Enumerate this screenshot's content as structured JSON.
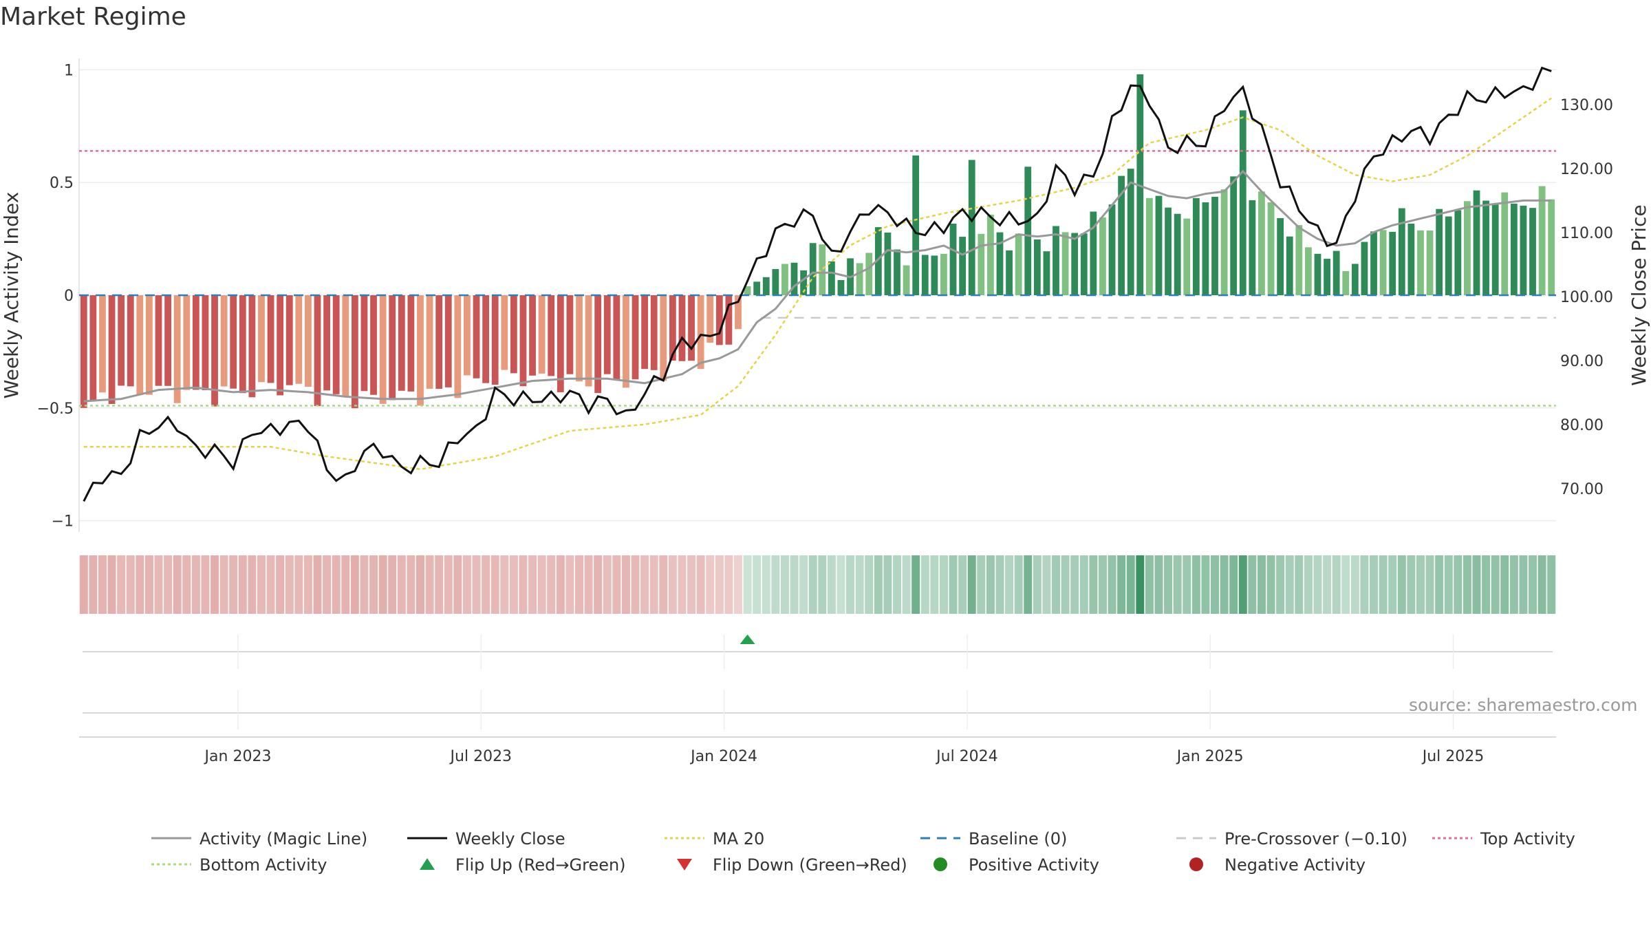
{
  "page": {
    "title": "Market Regime",
    "source": "source: sharemaestro.com"
  },
  "colors": {
    "red_dark": "#c95555",
    "red_light": "#e89a7c",
    "green_dark": "#2e8b57",
    "green_light": "#80c080",
    "close_line": "#111111",
    "magic_line": "#999999",
    "ma_line": "#e6d34a",
    "baseline": "#2c7fb8",
    "pre_crossover": "#cccccc",
    "top_activity": "#e07090",
    "bottom_activity": "#a8d880",
    "flip_up": "#22a050",
    "flip_down": "#d63030",
    "positive": "#228b22",
    "negative": "#b22222"
  },
  "chart_data": {
    "type": "bar",
    "title": "Market Regime",
    "ylabel": "Weekly Activity Index",
    "y2label": "Weekly Close Price",
    "ylim": [
      -1.05,
      1.05
    ],
    "y2lim": [
      63.2,
      137.2
    ],
    "y_ticks": [
      {
        "v": 1,
        "label": "1"
      },
      {
        "v": 0.5,
        "label": "0.5"
      },
      {
        "v": 0,
        "label": "0"
      },
      {
        "v": -0.5,
        "label": "−0.5"
      },
      {
        "v": -1,
        "label": "−1"
      }
    ],
    "y2_ticks": [
      70,
      80,
      90,
      100,
      110,
      120,
      130
    ],
    "x_ticks": [
      {
        "label": "Jan 2023",
        "week": 17
      },
      {
        "label": "Jul 2023",
        "week": 43
      },
      {
        "label": "Jan 2024",
        "week": 69
      },
      {
        "label": "Jul 2024",
        "week": 95
      },
      {
        "label": "Jan 2025",
        "week": 121
      },
      {
        "label": "Jul 2025",
        "week": 147
      }
    ],
    "weeks": 158,
    "flip_up_week": 71,
    "reference_lines": {
      "baseline": 0,
      "pre_crossover": -0.1,
      "top_activity": 0.64,
      "bottom_activity": -0.49
    },
    "activity_keypoints": [
      [
        0,
        -0.52
      ],
      [
        2,
        -0.44
      ],
      [
        6,
        -0.42
      ],
      [
        10,
        -0.43
      ],
      [
        14,
        -0.44
      ],
      [
        18,
        -0.42
      ],
      [
        22,
        -0.4
      ],
      [
        26,
        -0.45
      ],
      [
        30,
        -0.46
      ],
      [
        34,
        -0.45
      ],
      [
        38,
        -0.43
      ],
      [
        42,
        -0.38
      ],
      [
        46,
        -0.36
      ],
      [
        50,
        -0.37
      ],
      [
        54,
        -0.4
      ],
      [
        58,
        -0.38
      ],
      [
        62,
        -0.33
      ],
      [
        66,
        -0.28
      ],
      [
        69,
        -0.2
      ],
      [
        70,
        -0.13
      ],
      [
        71,
        0.04
      ],
      [
        73,
        0.08
      ],
      [
        75,
        0.12
      ],
      [
        77,
        0.16
      ],
      [
        79,
        0.22
      ],
      [
        81,
        0.1
      ],
      [
        83,
        0.14
      ],
      [
        85,
        0.3
      ],
      [
        87,
        0.2
      ],
      [
        89,
        0.16
      ],
      [
        91,
        0.18
      ],
      [
        93,
        0.27
      ],
      [
        95,
        0.25
      ],
      [
        97,
        0.32
      ],
      [
        99,
        0.24
      ],
      [
        101,
        0.26
      ],
      [
        103,
        0.24
      ],
      [
        105,
        0.28
      ],
      [
        107,
        0.3
      ],
      [
        109,
        0.35
      ],
      [
        111,
        0.52
      ],
      [
        113,
        0.55
      ],
      [
        115,
        0.4
      ],
      [
        117,
        0.37
      ],
      [
        119,
        0.38
      ],
      [
        121,
        0.46
      ],
      [
        123,
        0.49
      ],
      [
        125,
        0.46
      ],
      [
        127,
        0.4
      ],
      [
        129,
        0.3
      ],
      [
        131,
        0.22
      ],
      [
        133,
        0.18
      ],
      [
        135,
        0.12
      ],
      [
        137,
        0.22
      ],
      [
        139,
        0.3
      ],
      [
        141,
        0.34
      ],
      [
        143,
        0.3
      ],
      [
        145,
        0.33
      ],
      [
        147,
        0.4
      ],
      [
        149,
        0.43
      ],
      [
        151,
        0.44
      ],
      [
        153,
        0.4
      ],
      [
        155,
        0.42
      ],
      [
        157,
        0.44
      ]
    ],
    "activity_spikes": [
      [
        89,
        0.62
      ],
      [
        95,
        0.6
      ],
      [
        101,
        0.57
      ],
      [
        113,
        0.98
      ],
      [
        124,
        0.82
      ]
    ],
    "close_keypoints": [
      [
        0,
        68
      ],
      [
        2,
        72
      ],
      [
        4,
        72
      ],
      [
        6,
        78
      ],
      [
        8,
        80
      ],
      [
        10,
        80
      ],
      [
        12,
        76
      ],
      [
        14,
        76
      ],
      [
        16,
        74
      ],
      [
        18,
        79
      ],
      [
        20,
        79
      ],
      [
        22,
        80
      ],
      [
        24,
        80
      ],
      [
        26,
        73
      ],
      [
        28,
        71
      ],
      [
        30,
        76
      ],
      [
        32,
        76
      ],
      [
        34,
        73
      ],
      [
        36,
        74
      ],
      [
        38,
        74
      ],
      [
        40,
        78
      ],
      [
        42,
        79
      ],
      [
        44,
        85
      ],
      [
        46,
        84
      ],
      [
        48,
        84
      ],
      [
        50,
        84
      ],
      [
        52,
        85
      ],
      [
        54,
        83
      ],
      [
        56,
        84
      ],
      [
        58,
        81
      ],
      [
        60,
        85
      ],
      [
        62,
        88
      ],
      [
        64,
        93
      ],
      [
        66,
        93
      ],
      [
        68,
        95
      ],
      [
        70,
        100
      ],
      [
        72,
        105
      ],
      [
        74,
        110
      ],
      [
        76,
        112
      ],
      [
        78,
        113
      ],
      [
        80,
        106
      ],
      [
        82,
        110
      ],
      [
        84,
        114
      ],
      [
        86,
        113
      ],
      [
        88,
        111
      ],
      [
        90,
        110
      ],
      [
        92,
        111
      ],
      [
        94,
        113
      ],
      [
        96,
        113
      ],
      [
        98,
        112
      ],
      [
        100,
        112
      ],
      [
        102,
        112
      ],
      [
        104,
        120
      ],
      [
        106,
        117
      ],
      [
        108,
        119
      ],
      [
        110,
        127
      ],
      [
        112,
        133
      ],
      [
        114,
        131
      ],
      [
        116,
        123
      ],
      [
        118,
        124
      ],
      [
        120,
        124
      ],
      [
        122,
        130
      ],
      [
        124,
        132
      ],
      [
        126,
        126
      ],
      [
        128,
        118
      ],
      [
        130,
        114
      ],
      [
        132,
        110
      ],
      [
        134,
        108
      ],
      [
        136,
        116
      ],
      [
        138,
        122
      ],
      [
        140,
        124
      ],
      [
        142,
        126
      ],
      [
        144,
        125
      ],
      [
        146,
        128
      ],
      [
        148,
        131
      ],
      [
        150,
        131
      ],
      [
        152,
        132
      ],
      [
        154,
        132
      ],
      [
        156,
        135
      ],
      [
        157,
        135
      ]
    ],
    "ma_keypoints": [
      [
        0,
        76.5
      ],
      [
        20,
        76.5
      ],
      [
        26,
        75
      ],
      [
        36,
        73
      ],
      [
        44,
        75
      ],
      [
        52,
        79
      ],
      [
        60,
        80
      ],
      [
        66,
        81.5
      ],
      [
        70,
        86
      ],
      [
        74,
        94
      ],
      [
        78,
        103
      ],
      [
        82,
        108
      ],
      [
        86,
        111
      ],
      [
        92,
        113
      ],
      [
        100,
        115
      ],
      [
        106,
        117
      ],
      [
        110,
        119
      ],
      [
        114,
        124
      ],
      [
        120,
        126
      ],
      [
        124,
        128
      ],
      [
        128,
        126
      ],
      [
        132,
        122
      ],
      [
        136,
        119
      ],
      [
        140,
        118
      ],
      [
        144,
        119
      ],
      [
        148,
        122
      ],
      [
        152,
        126
      ],
      [
        157,
        131
      ]
    ],
    "magic_keypoints": [
      [
        0,
        -0.47
      ],
      [
        4,
        -0.46
      ],
      [
        8,
        -0.42
      ],
      [
        12,
        -0.41
      ],
      [
        16,
        -0.43
      ],
      [
        20,
        -0.42
      ],
      [
        24,
        -0.43
      ],
      [
        28,
        -0.45
      ],
      [
        32,
        -0.46
      ],
      [
        36,
        -0.46
      ],
      [
        40,
        -0.44
      ],
      [
        44,
        -0.41
      ],
      [
        48,
        -0.38
      ],
      [
        52,
        -0.37
      ],
      [
        56,
        -0.37
      ],
      [
        60,
        -0.39
      ],
      [
        64,
        -0.35
      ],
      [
        66,
        -0.3
      ],
      [
        68,
        -0.28
      ],
      [
        70,
        -0.24
      ],
      [
        72,
        -0.12
      ],
      [
        74,
        -0.06
      ],
      [
        76,
        0.04
      ],
      [
        78,
        0.1
      ],
      [
        80,
        0.1
      ],
      [
        82,
        0.08
      ],
      [
        84,
        0.12
      ],
      [
        86,
        0.2
      ],
      [
        88,
        0.19
      ],
      [
        90,
        0.2
      ],
      [
        92,
        0.22
      ],
      [
        94,
        0.18
      ],
      [
        96,
        0.22
      ],
      [
        98,
        0.23
      ],
      [
        100,
        0.27
      ],
      [
        102,
        0.26
      ],
      [
        104,
        0.27
      ],
      [
        106,
        0.25
      ],
      [
        108,
        0.3
      ],
      [
        110,
        0.4
      ],
      [
        112,
        0.5
      ],
      [
        114,
        0.47
      ],
      [
        116,
        0.44
      ],
      [
        118,
        0.43
      ],
      [
        120,
        0.45
      ],
      [
        122,
        0.46
      ],
      [
        124,
        0.55
      ],
      [
        126,
        0.46
      ],
      [
        128,
        0.38
      ],
      [
        130,
        0.3
      ],
      [
        132,
        0.25
      ],
      [
        134,
        0.22
      ],
      [
        136,
        0.23
      ],
      [
        138,
        0.28
      ],
      [
        140,
        0.31
      ],
      [
        142,
        0.33
      ],
      [
        144,
        0.35
      ],
      [
        146,
        0.37
      ],
      [
        148,
        0.39
      ],
      [
        150,
        0.4
      ],
      [
        152,
        0.41
      ],
      [
        154,
        0.42
      ],
      [
        157,
        0.42
      ]
    ],
    "legend": [
      {
        "label": "Activity (Magic Line)",
        "kind": "line",
        "color": "#999999",
        "dash": ""
      },
      {
        "label": "Weekly Close",
        "kind": "line",
        "color": "#111111",
        "dash": ""
      },
      {
        "label": "MA 20",
        "kind": "line",
        "color": "#e6d34a",
        "dash": "4 4"
      },
      {
        "label": "Baseline (0)",
        "kind": "line",
        "color": "#2c7fb8",
        "dash": "14 10"
      },
      {
        "label": "Pre-Crossover (−0.10)",
        "kind": "line",
        "color": "#cccccc",
        "dash": "14 10"
      },
      {
        "label": "Top Activity",
        "kind": "line",
        "color": "#e07090",
        "dash": "4 4"
      },
      {
        "label": "Bottom Activity",
        "kind": "line",
        "color": "#a8d880",
        "dash": "4 4"
      },
      {
        "label": "Flip Up (Red→Green)",
        "kind": "tri-up",
        "color": "#22a050"
      },
      {
        "label": "Flip Down (Green→Red)",
        "kind": "tri-down",
        "color": "#d63030"
      },
      {
        "label": "Positive Activity",
        "kind": "dot",
        "color": "#228b22"
      },
      {
        "label": "Negative Activity",
        "kind": "dot",
        "color": "#b22222"
      }
    ]
  }
}
